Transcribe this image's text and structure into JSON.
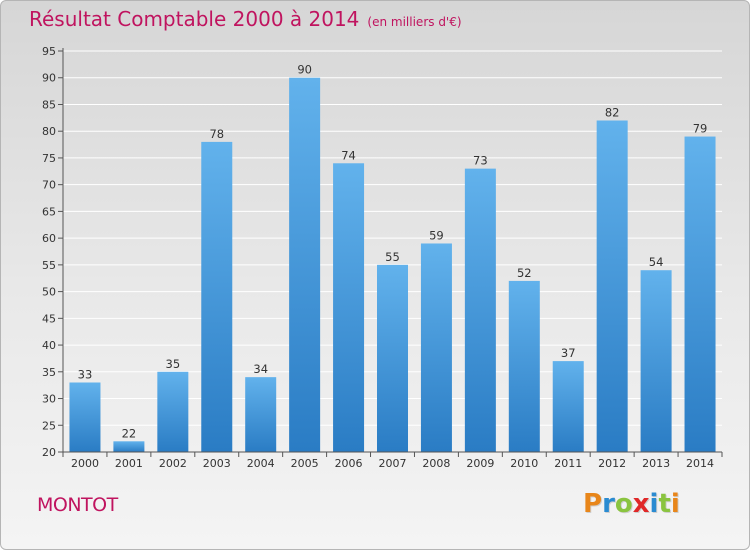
{
  "header": {
    "title": "Résultat Comptable 2000 à 2014",
    "subtitle": "(en milliers d'€)"
  },
  "footer": {
    "place": "MONTOT",
    "logo": {
      "letters": [
        "P",
        "r",
        "o",
        "x",
        "i",
        "t",
        "i"
      ],
      "colors": [
        "#e8861a",
        "#2a8bd1",
        "#8ac43f",
        "#e02828",
        "#2a8bd1",
        "#8ac43f",
        "#e8861a"
      ]
    }
  },
  "colors": {
    "bar_top": "#62b2ec",
    "bar_bottom": "#2a7cc4",
    "grid": "#ffffff",
    "accent": "#c0145f"
  },
  "chart_data": {
    "type": "bar",
    "categories": [
      "2000",
      "2001",
      "2002",
      "2003",
      "2004",
      "2005",
      "2006",
      "2007",
      "2008",
      "2009",
      "2010",
      "2011",
      "2012",
      "2013",
      "2014"
    ],
    "values": [
      33,
      22,
      35,
      78,
      34,
      90,
      74,
      55,
      59,
      73,
      52,
      37,
      82,
      54,
      79
    ],
    "ylim": [
      20,
      95
    ],
    "yticks": [
      20,
      25,
      30,
      35,
      40,
      45,
      50,
      55,
      60,
      65,
      70,
      75,
      80,
      85,
      90,
      95
    ],
    "grid": true,
    "data_labels": true
  }
}
